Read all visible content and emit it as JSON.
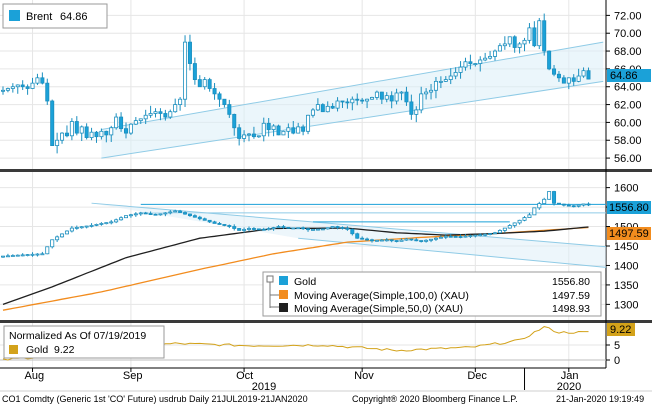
{
  "chart_data": [
    {
      "type": "candlestick",
      "panel": "top",
      "legend": {
        "name": "Brent",
        "value": "64.86"
      },
      "last_value_label": "64.86",
      "yaxis": {
        "ticks": [
          "72.00",
          "70.00",
          "68.00",
          "66.00",
          "64.00",
          "62.00",
          "60.00",
          "58.00",
          "56.00"
        ],
        "ylim": [
          55.0,
          73.5
        ]
      },
      "series_color": "#1ba1d8",
      "channel": {
        "upper": [
          [
            20,
            59.2
          ],
          [
            122,
            69.0
          ]
        ],
        "lower": [
          [
            20,
            56.0
          ],
          [
            122,
            64.6
          ]
        ]
      },
      "close": [
        {
          "i": 0,
          "v": 63.6
        },
        {
          "i": 3,
          "v": 64.2
        },
        {
          "i": 5,
          "v": 63.8
        },
        {
          "i": 7,
          "v": 65.0
        },
        {
          "i": 8,
          "v": 64.4
        },
        {
          "i": 9,
          "v": 62.4
        },
        {
          "i": 10,
          "v": 57.4
        },
        {
          "i": 11,
          "v": 58.0
        },
        {
          "i": 12,
          "v": 58.8
        },
        {
          "i": 13,
          "v": 58.5
        },
        {
          "i": 14,
          "v": 60.1
        },
        {
          "i": 15,
          "v": 58.8
        },
        {
          "i": 16,
          "v": 59.5
        },
        {
          "i": 17,
          "v": 58.3
        },
        {
          "i": 18,
          "v": 58.9
        },
        {
          "i": 19,
          "v": 58.4
        },
        {
          "i": 20,
          "v": 59.0
        },
        {
          "i": 21,
          "v": 58.6
        },
        {
          "i": 22,
          "v": 59.4
        },
        {
          "i": 23,
          "v": 60.6
        },
        {
          "i": 24,
          "v": 59.3
        },
        {
          "i": 25,
          "v": 58.8
        },
        {
          "i": 26,
          "v": 59.8
        },
        {
          "i": 27,
          "v": 60.2
        },
        {
          "i": 28,
          "v": 60.4
        },
        {
          "i": 29,
          "v": 60.8
        },
        {
          "i": 30,
          "v": 61.0
        },
        {
          "i": 31,
          "v": 61.2
        },
        {
          "i": 32,
          "v": 61.0
        },
        {
          "i": 33,
          "v": 60.6
        },
        {
          "i": 34,
          "v": 61.2
        },
        {
          "i": 35,
          "v": 62.0
        },
        {
          "i": 36,
          "v": 62.6
        },
        {
          "i": 37,
          "v": 69.0
        },
        {
          "i": 38,
          "v": 66.6
        },
        {
          "i": 39,
          "v": 64.8
        },
        {
          "i": 40,
          "v": 64.0
        },
        {
          "i": 41,
          "v": 64.8
        },
        {
          "i": 42,
          "v": 63.8
        },
        {
          "i": 43,
          "v": 63.2
        },
        {
          "i": 44,
          "v": 62.6
        },
        {
          "i": 45,
          "v": 62.0
        },
        {
          "i": 46,
          "v": 60.9
        },
        {
          "i": 47,
          "v": 59.4
        },
        {
          "i": 48,
          "v": 58.2
        },
        {
          "i": 49,
          "v": 58.6
        },
        {
          "i": 50,
          "v": 58.7
        },
        {
          "i": 51,
          "v": 58.4
        },
        {
          "i": 52,
          "v": 58.5
        },
        {
          "i": 53,
          "v": 59.9
        },
        {
          "i": 54,
          "v": 59.2
        },
        {
          "i": 55,
          "v": 59.6
        },
        {
          "i": 56,
          "v": 58.6
        },
        {
          "i": 57,
          "v": 59.0
        },
        {
          "i": 58,
          "v": 59.4
        },
        {
          "i": 59,
          "v": 58.8
        },
        {
          "i": 60,
          "v": 59.5
        },
        {
          "i": 61,
          "v": 59.0
        },
        {
          "i": 62,
          "v": 60.8
        },
        {
          "i": 63,
          "v": 61.4
        },
        {
          "i": 64,
          "v": 62.0
        },
        {
          "i": 65,
          "v": 61.2
        },
        {
          "i": 66,
          "v": 61.8
        },
        {
          "i": 67,
          "v": 61.6
        },
        {
          "i": 68,
          "v": 62.4
        },
        {
          "i": 69,
          "v": 62.3
        },
        {
          "i": 70,
          "v": 62.2
        },
        {
          "i": 71,
          "v": 62.6
        },
        {
          "i": 72,
          "v": 62.5
        },
        {
          "i": 73,
          "v": 62.4
        },
        {
          "i": 74,
          "v": 62.6
        },
        {
          "i": 75,
          "v": 62.8
        },
        {
          "i": 76,
          "v": 63.4
        },
        {
          "i": 77,
          "v": 62.6
        },
        {
          "i": 78,
          "v": 63.0
        },
        {
          "i": 79,
          "v": 62.4
        },
        {
          "i": 80,
          "v": 63.3
        },
        {
          "i": 81,
          "v": 63.4
        },
        {
          "i": 82,
          "v": 62.3
        },
        {
          "i": 83,
          "v": 60.9
        },
        {
          "i": 84,
          "v": 61.4
        },
        {
          "i": 85,
          "v": 63.2
        },
        {
          "i": 86,
          "v": 63.4
        },
        {
          "i": 87,
          "v": 63.6
        },
        {
          "i": 88,
          "v": 64.6
        },
        {
          "i": 89,
          "v": 64.6
        },
        {
          "i": 90,
          "v": 64.8
        },
        {
          "i": 91,
          "v": 65.2
        },
        {
          "i": 92,
          "v": 65.6
        },
        {
          "i": 93,
          "v": 66.2
        },
        {
          "i": 94,
          "v": 66.8
        },
        {
          "i": 95,
          "v": 66.6
        },
        {
          "i": 96,
          "v": 66.6
        },
        {
          "i": 97,
          "v": 67.0
        },
        {
          "i": 98,
          "v": 67.2
        },
        {
          "i": 99,
          "v": 67.4
        },
        {
          "i": 100,
          "v": 68.0
        },
        {
          "i": 101,
          "v": 68.6
        },
        {
          "i": 102,
          "v": 68.8
        },
        {
          "i": 103,
          "v": 69.6
        },
        {
          "i": 104,
          "v": 68.4
        },
        {
          "i": 105,
          "v": 68.8
        },
        {
          "i": 106,
          "v": 69.2
        },
        {
          "i": 107,
          "v": 70.6
        },
        {
          "i": 108,
          "v": 68.6
        },
        {
          "i": 109,
          "v": 71.4
        },
        {
          "i": 110,
          "v": 68.0
        },
        {
          "i": 111,
          "v": 66.0
        },
        {
          "i": 112,
          "v": 65.4
        },
        {
          "i": 113,
          "v": 65.0
        },
        {
          "i": 114,
          "v": 64.4
        },
        {
          "i": 115,
          "v": 65.0
        },
        {
          "i": 116,
          "v": 64.6
        },
        {
          "i": 117,
          "v": 65.2
        },
        {
          "i": 118,
          "v": 65.8
        },
        {
          "i": 119,
          "v": 64.86
        }
      ]
    },
    {
      "type": "candlestick+line",
      "panel": "middle",
      "yaxis": {
        "ticks": [
          "1600",
          "1550",
          "1500",
          "1450",
          "1400",
          "1350",
          "1300"
        ],
        "ylim": [
          1265,
          1635
        ]
      },
      "last_value_labels": [
        "1556.80",
        "1497.59"
      ],
      "legend": [
        {
          "name": "Gold",
          "value": "1556.80",
          "color": "#1ba1d8"
        },
        {
          "name": "Moving Average(Simple,100,0)  (XAU)",
          "value": "1497.59",
          "color": "#f28c1e"
        },
        {
          "name": "Moving Average(Simple,50,0)  (XAU)",
          "value": "1498.93",
          "color": "#202020"
        }
      ],
      "gold_close": [
        {
          "i": 0,
          "v": 1424
        },
        {
          "i": 5,
          "v": 1428
        },
        {
          "i": 8,
          "v": 1430
        },
        {
          "i": 10,
          "v": 1466
        },
        {
          "i": 14,
          "v": 1496
        },
        {
          "i": 18,
          "v": 1503
        },
        {
          "i": 20,
          "v": 1508
        },
        {
          "i": 22,
          "v": 1512
        },
        {
          "i": 25,
          "v": 1528
        },
        {
          "i": 28,
          "v": 1535
        },
        {
          "i": 31,
          "v": 1530
        },
        {
          "i": 35,
          "v": 1540
        },
        {
          "i": 38,
          "v": 1528
        },
        {
          "i": 40,
          "v": 1520
        },
        {
          "i": 43,
          "v": 1508
        },
        {
          "i": 46,
          "v": 1500
        },
        {
          "i": 48,
          "v": 1490
        },
        {
          "i": 50,
          "v": 1495
        },
        {
          "i": 53,
          "v": 1492
        },
        {
          "i": 56,
          "v": 1500
        },
        {
          "i": 58,
          "v": 1496
        },
        {
          "i": 60,
          "v": 1497
        },
        {
          "i": 62,
          "v": 1492
        },
        {
          "i": 65,
          "v": 1494
        },
        {
          "i": 67,
          "v": 1500
        },
        {
          "i": 70,
          "v": 1493
        },
        {
          "i": 72,
          "v": 1470
        },
        {
          "i": 75,
          "v": 1464
        },
        {
          "i": 78,
          "v": 1466
        },
        {
          "i": 80,
          "v": 1462
        },
        {
          "i": 82,
          "v": 1468
        },
        {
          "i": 85,
          "v": 1462
        },
        {
          "i": 88,
          "v": 1470
        },
        {
          "i": 90,
          "v": 1475
        },
        {
          "i": 93,
          "v": 1474
        },
        {
          "i": 96,
          "v": 1478
        },
        {
          "i": 98,
          "v": 1480
        },
        {
          "i": 100,
          "v": 1484
        },
        {
          "i": 102,
          "v": 1496
        },
        {
          "i": 105,
          "v": 1516
        },
        {
          "i": 107,
          "v": 1530
        },
        {
          "i": 108,
          "v": 1548
        },
        {
          "i": 110,
          "v": 1570
        },
        {
          "i": 111,
          "v": 1590
        },
        {
          "i": 112,
          "v": 1560
        },
        {
          "i": 114,
          "v": 1555
        },
        {
          "i": 116,
          "v": 1552
        },
        {
          "i": 118,
          "v": 1558
        },
        {
          "i": 119,
          "v": 1556.8
        }
      ],
      "ma100": [
        {
          "i": 0,
          "v": 1285
        },
        {
          "i": 20,
          "v": 1332
        },
        {
          "i": 40,
          "v": 1390
        },
        {
          "i": 55,
          "v": 1430
        },
        {
          "i": 70,
          "v": 1460
        },
        {
          "i": 85,
          "v": 1472
        },
        {
          "i": 100,
          "v": 1482
        },
        {
          "i": 119,
          "v": 1497.59
        }
      ],
      "ma50": [
        {
          "i": 0,
          "v": 1300
        },
        {
          "i": 10,
          "v": 1345
        },
        {
          "i": 25,
          "v": 1420
        },
        {
          "i": 40,
          "v": 1470
        },
        {
          "i": 55,
          "v": 1495
        },
        {
          "i": 70,
          "v": 1496
        },
        {
          "i": 80,
          "v": 1484
        },
        {
          "i": 90,
          "v": 1478
        },
        {
          "i": 100,
          "v": 1482
        },
        {
          "i": 110,
          "v": 1488
        },
        {
          "i": 119,
          "v": 1498.93
        }
      ]
    },
    {
      "type": "line",
      "panel": "bottom",
      "legend_title": "Normalized As Of 07/19/2019",
      "legend": {
        "name": "Gold",
        "value": "9.22",
        "color": "#d3a21a"
      },
      "last_value_label": "9.22",
      "yaxis": {
        "ticks": [
          "5",
          "0"
        ],
        "ylim": [
          -2,
          12
        ]
      },
      "values": [
        {
          "i": 0,
          "v": 0.0
        },
        {
          "i": 10,
          "v": 1.5
        },
        {
          "i": 20,
          "v": 3.5
        },
        {
          "i": 35,
          "v": 5.5
        },
        {
          "i": 50,
          "v": 4.8
        },
        {
          "i": 65,
          "v": 5.0
        },
        {
          "i": 80,
          "v": 3.2
        },
        {
          "i": 95,
          "v": 4.2
        },
        {
          "i": 105,
          "v": 6.5
        },
        {
          "i": 110,
          "v": 11.0
        },
        {
          "i": 113,
          "v": 9.2
        },
        {
          "i": 119,
          "v": 9.22
        }
      ]
    }
  ],
  "x_axis": {
    "months": [
      {
        "label": "Aug",
        "i": 6
      },
      {
        "label": "Sep",
        "i": 26
      },
      {
        "label": "Oct",
        "i": 49
      },
      {
        "label": "Nov",
        "i": 73
      },
      {
        "label": "Dec",
        "i": 96
      },
      {
        "label": "Jan",
        "i": 115
      }
    ],
    "years": [
      {
        "label": "2019",
        "i": 53
      },
      {
        "label": "2020",
        "i": 115
      }
    ]
  },
  "footer": {
    "left": "CO1 Comdty (Generic 1st 'CO' Future)  usdrub  Daily 21JUL2019-21JAN2020",
    "center": "Copyright® 2020 Bloomberg Finance L.P.",
    "right": "21-Jan-2020 19:19:49"
  }
}
